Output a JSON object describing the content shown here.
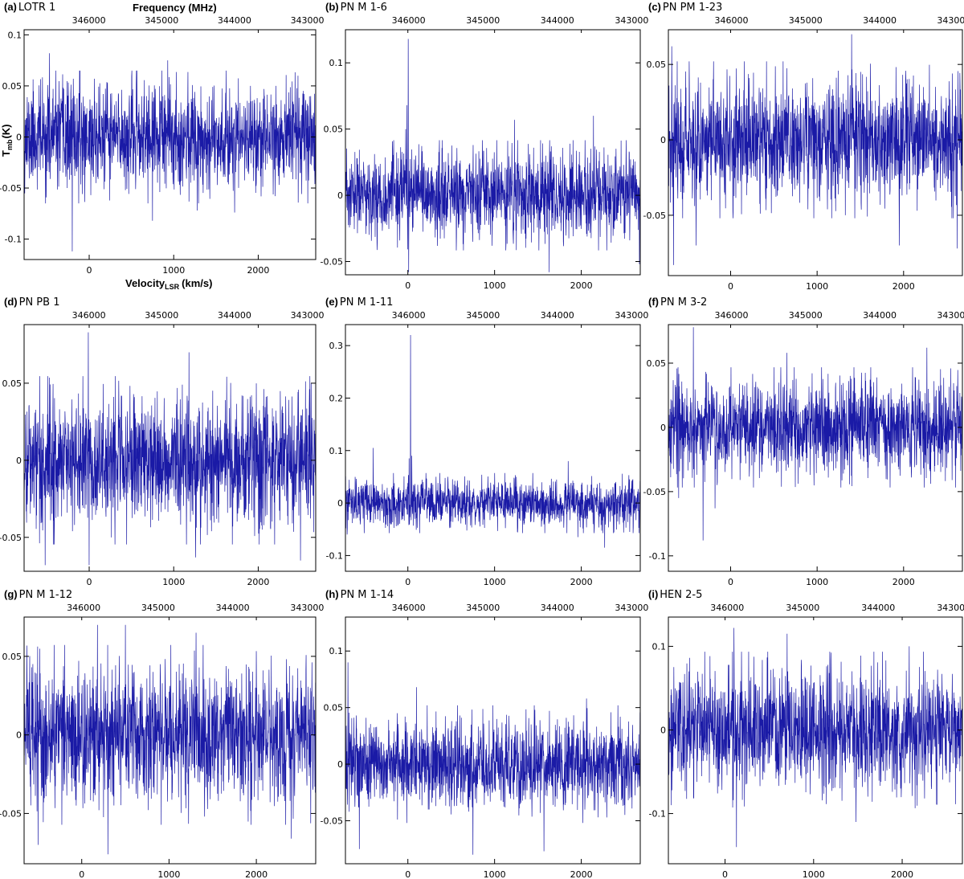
{
  "figure": {
    "xlabel_top": "Frequency (MHz)",
    "xlabel_bottom": "Velocity",
    "xlabel_bottom_sub": "LSR",
    "xlabel_bottom_unit": "(km/s)",
    "ylabel": "T",
    "ylabel_sub": "mb",
    "ylabel_unit": "(K)",
    "line_color": "#1a1aa6"
  },
  "chart_data": [
    {
      "type": "line",
      "letter": "(a)",
      "source": "LOTR 1",
      "xlim": [
        -770,
        2680
      ],
      "ylim": [
        -0.12,
        0.105
      ],
      "freq_lim": [
        346889,
        342885
      ],
      "x_ticks": [
        0,
        1000,
        2000
      ],
      "x_tick_labels": [
        "0",
        "1000",
        "2000"
      ],
      "freq_ticks": [
        346000,
        345000,
        344000,
        343000
      ],
      "freq_tick_labels": [
        "346000",
        "345000",
        "344000",
        "343000"
      ],
      "y_ticks": [
        -0.1,
        -0.05,
        0,
        0.05,
        0.1
      ],
      "y_tick_labels": [
        "-0.1",
        "-0.05",
        "0",
        "0.05",
        "0.1"
      ],
      "noise_sigma": 0.025,
      "seed": 11,
      "features": [
        {
          "x": -200,
          "y": -0.112
        },
        {
          "x": -470,
          "y": 0.082
        },
        {
          "x": 750,
          "y": -0.082
        },
        {
          "x": 930,
          "y": 0.075
        },
        {
          "x": 1280,
          "y": -0.072
        },
        {
          "x": 1720,
          "y": -0.074
        },
        {
          "x": 2470,
          "y": 0.06
        }
      ]
    },
    {
      "type": "line",
      "letter": "(b)",
      "source": "PN M 1-6",
      "xlim": [
        -720,
        2680
      ],
      "ylim": [
        -0.06,
        0.125
      ],
      "freq_lim": [
        346850,
        342885
      ],
      "x_ticks": [
        0,
        1000,
        2000
      ],
      "x_tick_labels": [
        "0",
        "1000",
        "2000"
      ],
      "freq_ticks": [
        346000,
        345000,
        344000,
        343000
      ],
      "freq_tick_labels": [
        "346000",
        "345000",
        "344000",
        "343000"
      ],
      "y_ticks": [
        -0.05,
        0,
        0.05,
        0.1
      ],
      "y_tick_labels": [
        "-0.05",
        "0",
        "0.05",
        "0.1"
      ],
      "noise_sigma": 0.016,
      "seed": 23,
      "features": [
        {
          "x": 5,
          "y": 0.118
        },
        {
          "x": -10,
          "y": 0.068
        },
        {
          "x": -25,
          "y": 0.05
        },
        {
          "x": 10,
          "y": -0.058
        },
        {
          "x": 1630,
          "y": -0.058
        },
        {
          "x": 1230,
          "y": 0.057
        },
        {
          "x": 2140,
          "y": 0.06
        },
        {
          "x": 2670,
          "y": -0.052
        }
      ]
    },
    {
      "type": "line",
      "letter": "(c)",
      "source": "PN PM 1-23",
      "xlim": [
        -720,
        2680
      ],
      "ylim": [
        -0.09,
        0.073
      ],
      "freq_lim": [
        346850,
        342885
      ],
      "x_ticks": [
        0,
        1000,
        2000
      ],
      "x_tick_labels": [
        "0",
        "1000",
        "2000"
      ],
      "freq_ticks": [
        346000,
        345000,
        344000,
        343000
      ],
      "freq_tick_labels": [
        "346000",
        "345000",
        "344000",
        "343000"
      ],
      "y_ticks": [
        -0.05,
        0,
        0.05
      ],
      "y_tick_labels": [
        "-0.05",
        "0",
        "0.05"
      ],
      "noise_sigma": 0.02,
      "seed": 37,
      "features": [
        {
          "x": -660,
          "y": -0.083
        },
        {
          "x": -680,
          "y": 0.062
        },
        {
          "x": 1400,
          "y": 0.07
        },
        {
          "x": -400,
          "y": -0.07
        },
        {
          "x": 1950,
          "y": -0.07
        },
        {
          "x": 2620,
          "y": -0.072
        }
      ]
    },
    {
      "type": "line",
      "letter": "(d)",
      "source": "PN PB 1",
      "xlim": [
        -770,
        2680
      ],
      "ylim": [
        -0.072,
        0.088
      ],
      "freq_lim": [
        346889,
        342885
      ],
      "x_ticks": [
        0,
        1000,
        2000
      ],
      "x_tick_labels": [
        "0",
        "1000",
        "2000"
      ],
      "freq_ticks": [
        346000,
        345000,
        344000,
        343000
      ],
      "freq_tick_labels": [
        "346000",
        "345000",
        "344000",
        "343000"
      ],
      "y_ticks": [
        -0.05,
        0,
        0.05
      ],
      "y_tick_labels": [
        "-0.05",
        "0",
        "0.05"
      ],
      "noise_sigma": 0.021,
      "seed": 41,
      "features": [
        {
          "x": -10,
          "y": 0.083
        },
        {
          "x": 1180,
          "y": 0.07
        },
        {
          "x": -520,
          "y": -0.068
        },
        {
          "x": 0,
          "y": -0.068
        },
        {
          "x": 1260,
          "y": -0.063
        },
        {
          "x": 2500,
          "y": -0.065
        }
      ]
    },
    {
      "type": "line",
      "letter": "(e)",
      "source": "PN M 1-11",
      "xlim": [
        -720,
        2680
      ],
      "ylim": [
        -0.13,
        0.34
      ],
      "freq_lim": [
        346850,
        342885
      ],
      "x_ticks": [
        0,
        1000,
        2000
      ],
      "x_tick_labels": [
        "0",
        "1000",
        "2000"
      ],
      "freq_ticks": [
        346000,
        345000,
        344000,
        343000
      ],
      "freq_tick_labels": [
        "346000",
        "345000",
        "344000",
        "343000"
      ],
      "y_ticks": [
        -0.1,
        0,
        0.1,
        0.2,
        0.3
      ],
      "y_tick_labels": [
        "-0.1",
        "0",
        "0.1",
        "0.2",
        "0.3"
      ],
      "noise_sigma": 0.022,
      "seed": 53,
      "features": [
        {
          "x": 30,
          "y": 0.32
        },
        {
          "x": 15,
          "y": 0.085
        },
        {
          "x": 45,
          "y": 0.09
        },
        {
          "x": -400,
          "y": 0.105
        },
        {
          "x": 1850,
          "y": 0.08
        },
        {
          "x": -700,
          "y": -0.06
        },
        {
          "x": 1960,
          "y": -0.065
        },
        {
          "x": 2270,
          "y": -0.085
        }
      ]
    },
    {
      "type": "line",
      "letter": "(f)",
      "source": "PN M 3-2",
      "xlim": [
        -720,
        2680
      ],
      "ylim": [
        -0.112,
        0.08
      ],
      "freq_lim": [
        346850,
        342885
      ],
      "x_ticks": [
        0,
        1000,
        2000
      ],
      "x_tick_labels": [
        "0",
        "1000",
        "2000"
      ],
      "freq_ticks": [
        346000,
        345000,
        344000,
        343000
      ],
      "freq_tick_labels": [
        "346000",
        "345000",
        "344000",
        "343000"
      ],
      "y_ticks": [
        -0.1,
        -0.05,
        0,
        0.05
      ],
      "y_tick_labels": [
        "-0.1",
        "-0.05",
        "0",
        "0.05"
      ],
      "noise_sigma": 0.018,
      "seed": 67,
      "features": [
        {
          "x": -430,
          "y": 0.078
        },
        {
          "x": -320,
          "y": -0.088
        },
        {
          "x": -600,
          "y": -0.055
        },
        {
          "x": -180,
          "y": -0.063
        },
        {
          "x": 650,
          "y": 0.058
        },
        {
          "x": 2270,
          "y": 0.062
        }
      ]
    },
    {
      "type": "line",
      "letter": "(g)",
      "source": "PN M 1-12",
      "xlim": [
        -660,
        2680
      ],
      "ylim": [
        -0.082,
        0.075
      ],
      "freq_lim": [
        346800,
        342885
      ],
      "x_ticks": [
        0,
        1000,
        2000
      ],
      "x_tick_labels": [
        "0",
        "1000",
        "2000"
      ],
      "freq_ticks": [
        346000,
        345000,
        344000,
        343000
      ],
      "freq_tick_labels": [
        "346000",
        "345000",
        "344000",
        "343000"
      ],
      "y_ticks": [
        -0.05,
        0,
        0.05
      ],
      "y_tick_labels": [
        "-0.05",
        "0",
        "0.05"
      ],
      "noise_sigma": 0.022,
      "seed": 79,
      "features": [
        {
          "x": 300,
          "y": -0.076
        },
        {
          "x": 180,
          "y": 0.07
        },
        {
          "x": 500,
          "y": 0.07
        },
        {
          "x": -500,
          "y": -0.07
        },
        {
          "x": 1310,
          "y": 0.065
        },
        {
          "x": 2400,
          "y": -0.066
        }
      ]
    },
    {
      "type": "line",
      "letter": "(h)",
      "source": "PN M 1-14",
      "xlim": [
        -720,
        2680
      ],
      "ylim": [
        -0.088,
        0.13
      ],
      "freq_lim": [
        346850,
        342885
      ],
      "x_ticks": [
        0,
        1000,
        2000
      ],
      "x_tick_labels": [
        "0",
        "1000",
        "2000"
      ],
      "freq_ticks": [
        346000,
        345000,
        344000,
        343000
      ],
      "freq_tick_labels": [
        "346000",
        "345000",
        "344000",
        "343000"
      ],
      "y_ticks": [
        -0.05,
        0,
        0.05,
        0.1
      ],
      "y_tick_labels": [
        "-0.05",
        "0",
        "0.05",
        "0.1"
      ],
      "noise_sigma": 0.02,
      "seed": 83,
      "features": [
        {
          "x": -690,
          "y": 0.09
        },
        {
          "x": -560,
          "y": -0.075
        },
        {
          "x": 750,
          "y": -0.08
        },
        {
          "x": 1570,
          "y": -0.077
        },
        {
          "x": 100,
          "y": 0.068
        },
        {
          "x": 2060,
          "y": 0.058
        }
      ]
    },
    {
      "type": "line",
      "letter": "(i)",
      "source": "HEN 2-5",
      "xlim": [
        -640,
        2680
      ],
      "ylim": [
        -0.16,
        0.135
      ],
      "freq_lim": [
        346780,
        342885
      ],
      "x_ticks": [
        0,
        1000,
        2000
      ],
      "x_tick_labels": [
        "0",
        "1000",
        "2000"
      ],
      "freq_ticks": [
        346000,
        345000,
        344000,
        343000
      ],
      "freq_tick_labels": [
        "346000",
        "345000",
        "344000",
        "343000"
      ],
      "y_ticks": [
        -0.1,
        0,
        0.1
      ],
      "y_tick_labels": [
        "-0.1",
        "0",
        "0.1"
      ],
      "noise_sigma": 0.036,
      "seed": 97,
      "features": [
        {
          "x": 130,
          "y": -0.14
        },
        {
          "x": 100,
          "y": 0.122
        },
        {
          "x": 700,
          "y": 0.115
        },
        {
          "x": -610,
          "y": -0.09
        },
        {
          "x": 2080,
          "y": 0.1
        },
        {
          "x": 1480,
          "y": -0.11
        }
      ]
    }
  ]
}
